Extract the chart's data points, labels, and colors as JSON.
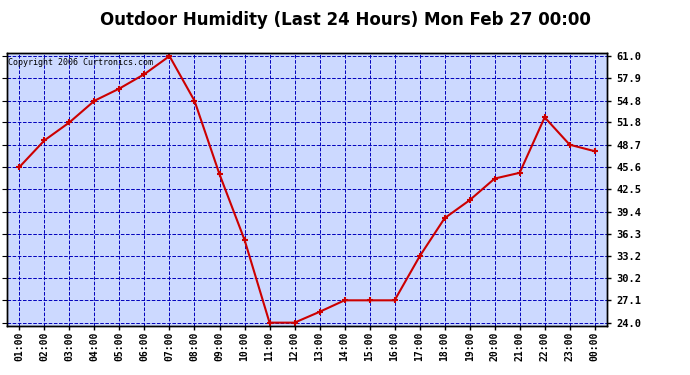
{
  "title": "Outdoor Humidity (Last 24 Hours) Mon Feb 27 00:00",
  "copyright": "Copyright 2006 Curtronics.com",
  "x_labels": [
    "01:00",
    "02:00",
    "03:00",
    "04:00",
    "05:00",
    "06:00",
    "07:00",
    "08:00",
    "09:00",
    "10:00",
    "11:00",
    "12:00",
    "13:00",
    "14:00",
    "15:00",
    "16:00",
    "17:00",
    "18:00",
    "19:00",
    "20:00",
    "21:00",
    "22:00",
    "23:00",
    "00:00"
  ],
  "y_values": [
    45.6,
    49.3,
    51.8,
    54.8,
    56.5,
    58.5,
    61.0,
    54.8,
    44.6,
    35.5,
    24.0,
    24.0,
    25.5,
    27.1,
    27.1,
    27.1,
    33.2,
    38.5,
    41.0,
    44.0,
    44.8,
    52.5,
    48.7,
    47.8
  ],
  "line_color": "#cc0000",
  "marker_color": "#cc0000",
  "bg_color": "#ccd9ff",
  "grid_color": "#0000bb",
  "border_color": "#000000",
  "title_fontsize": 12,
  "ymin": 24.0,
  "ymax": 61.0,
  "yticks": [
    24.0,
    27.1,
    30.2,
    33.2,
    36.3,
    39.4,
    42.5,
    45.6,
    48.7,
    51.8,
    54.8,
    57.9,
    61.0
  ]
}
